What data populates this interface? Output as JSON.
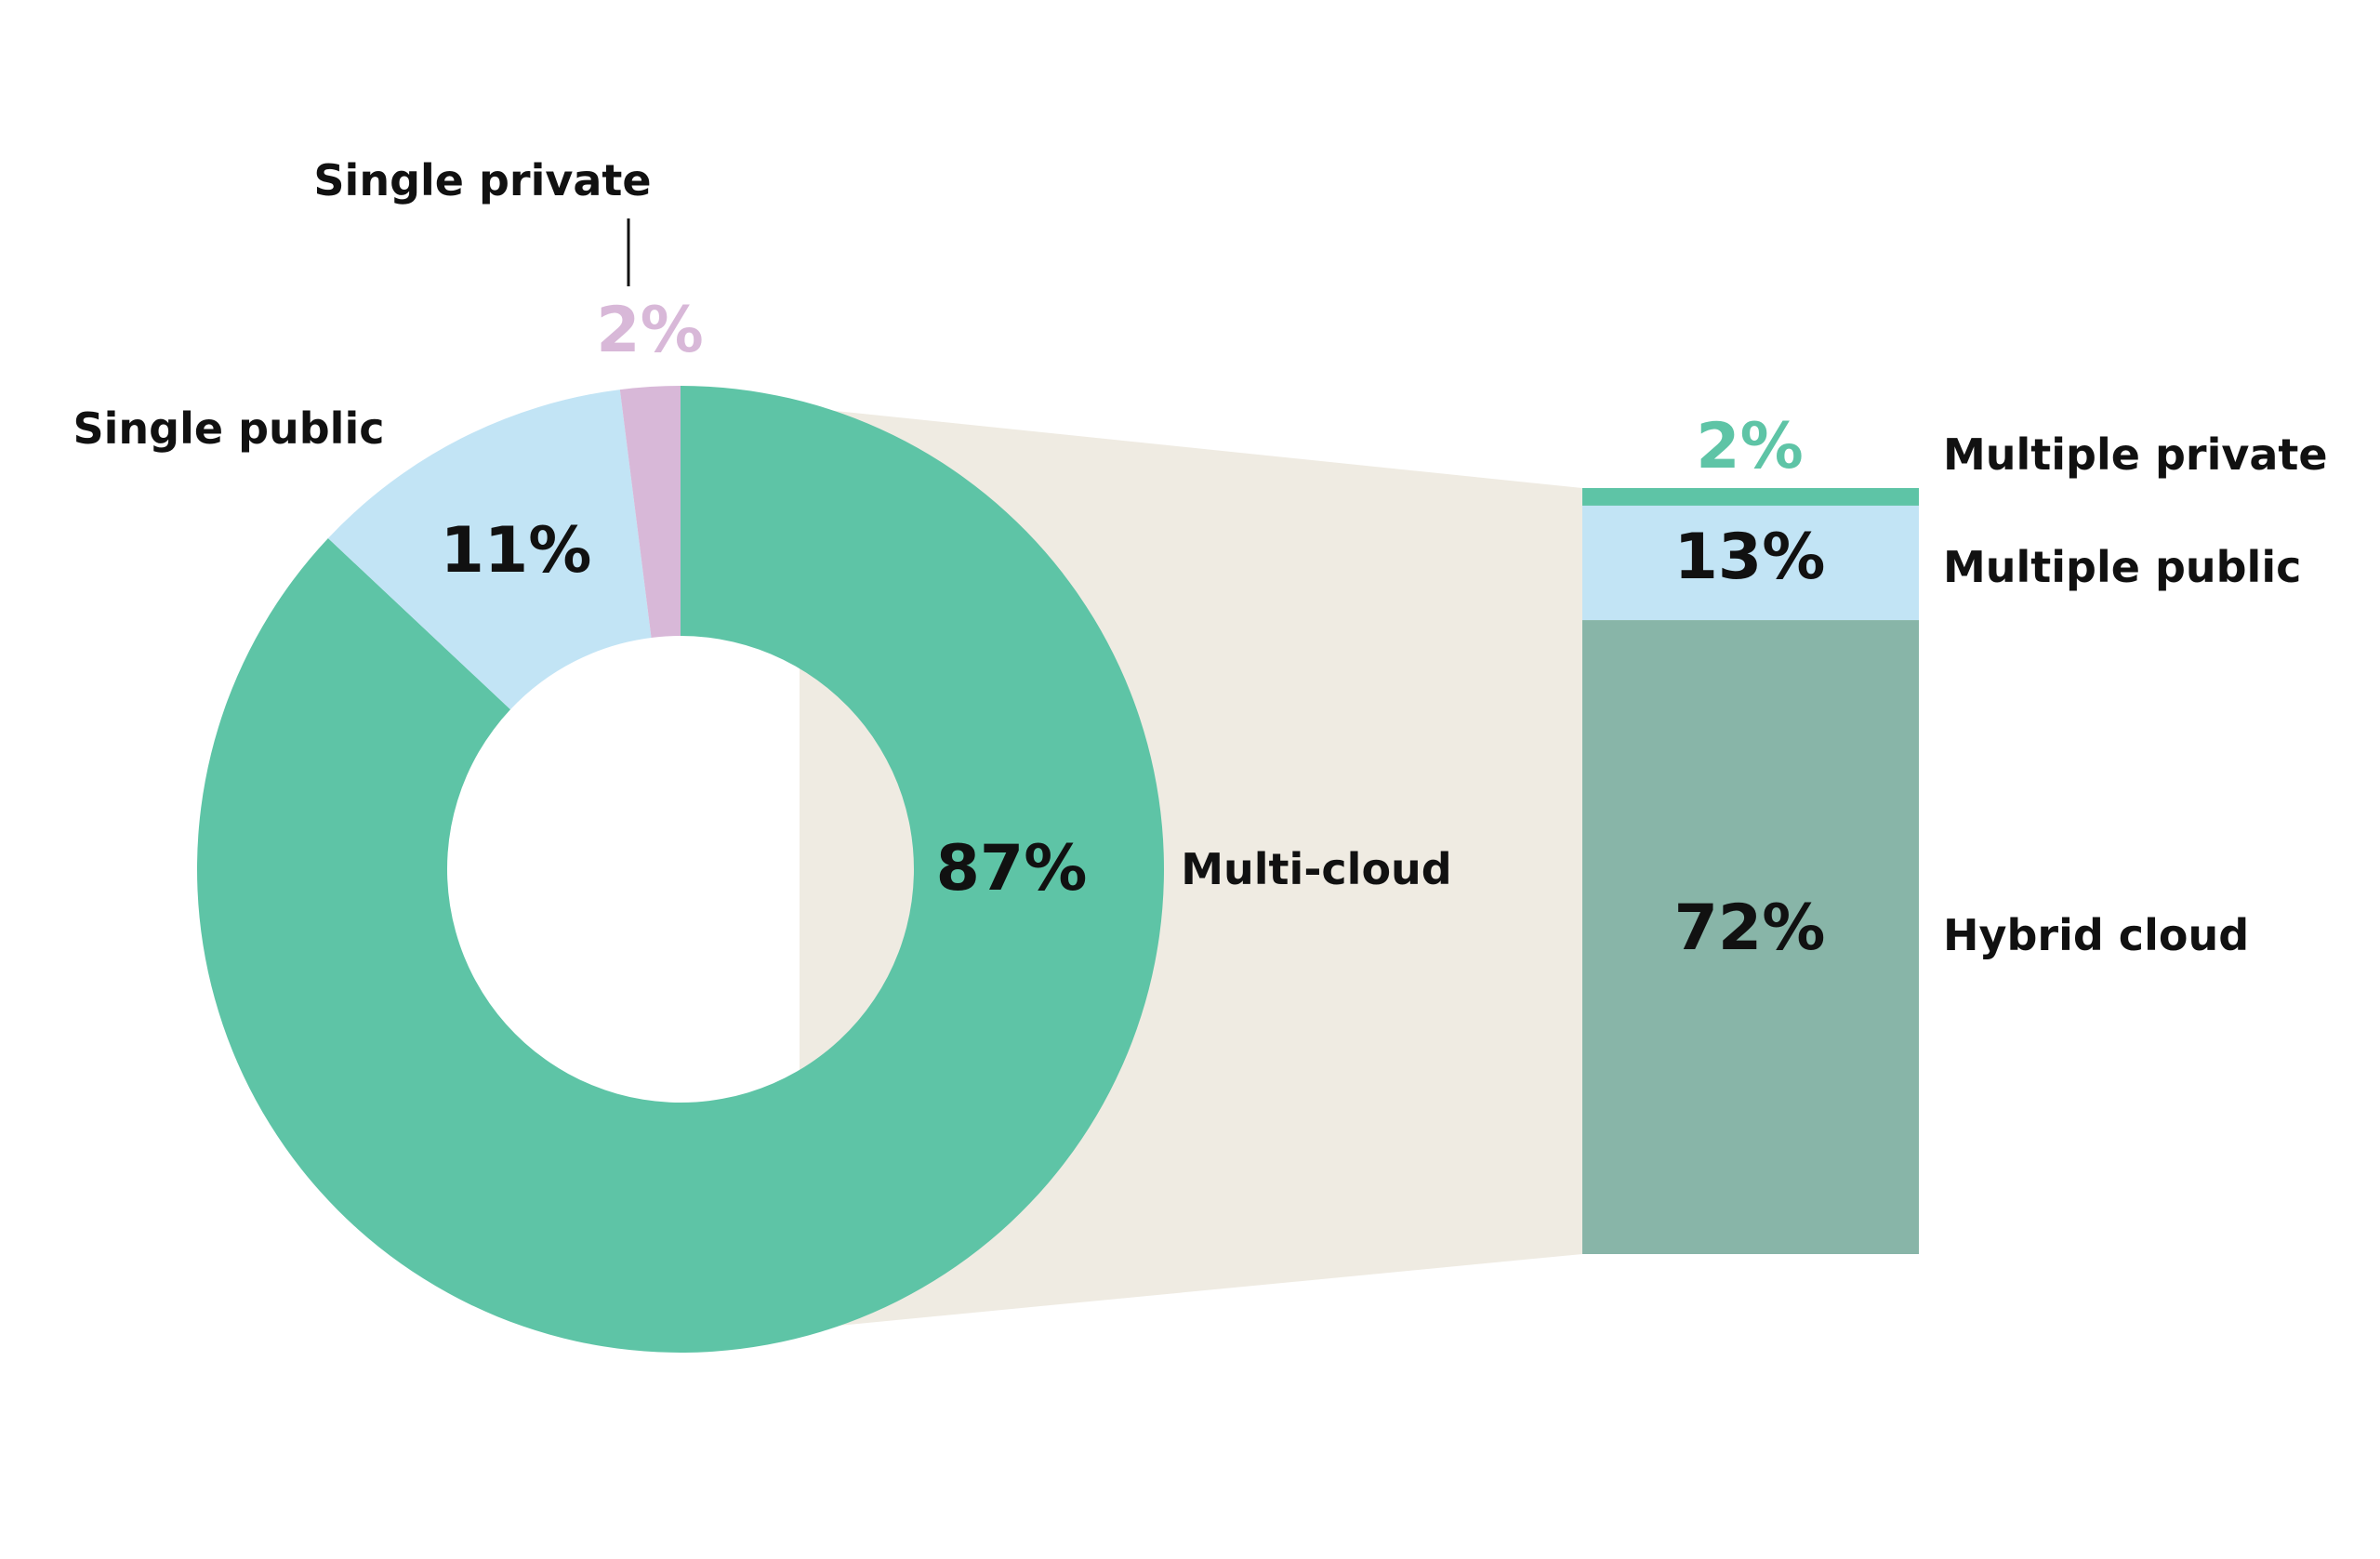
{
  "chart_data": {
    "type": "pie",
    "subtype": "donut-with-breakdown-bar",
    "pie": {
      "slices": [
        {
          "name": "Multi-cloud",
          "value": 87,
          "label": "87%",
          "color": "#5EC4A6"
        },
        {
          "name": "Single public",
          "value": 11,
          "label": "11%",
          "color": "#C2E4F5"
        },
        {
          "name": "Single private",
          "value": 2,
          "label": "2%",
          "color": "#D8B8D8"
        }
      ]
    },
    "breakdown_of": "Multi-cloud",
    "bar": {
      "segments": [
        {
          "name": "Multiple private",
          "value": 2,
          "label": "2%",
          "color": "#5EC4A6"
        },
        {
          "name": "Multiple public",
          "value": 13,
          "label": "13%",
          "color": "#C2E4F5"
        },
        {
          "name": "Hybrid cloud",
          "value": 72,
          "label": "72%",
          "color": "#88B5A8"
        }
      ]
    },
    "connector_color": "#EFEBE2"
  }
}
